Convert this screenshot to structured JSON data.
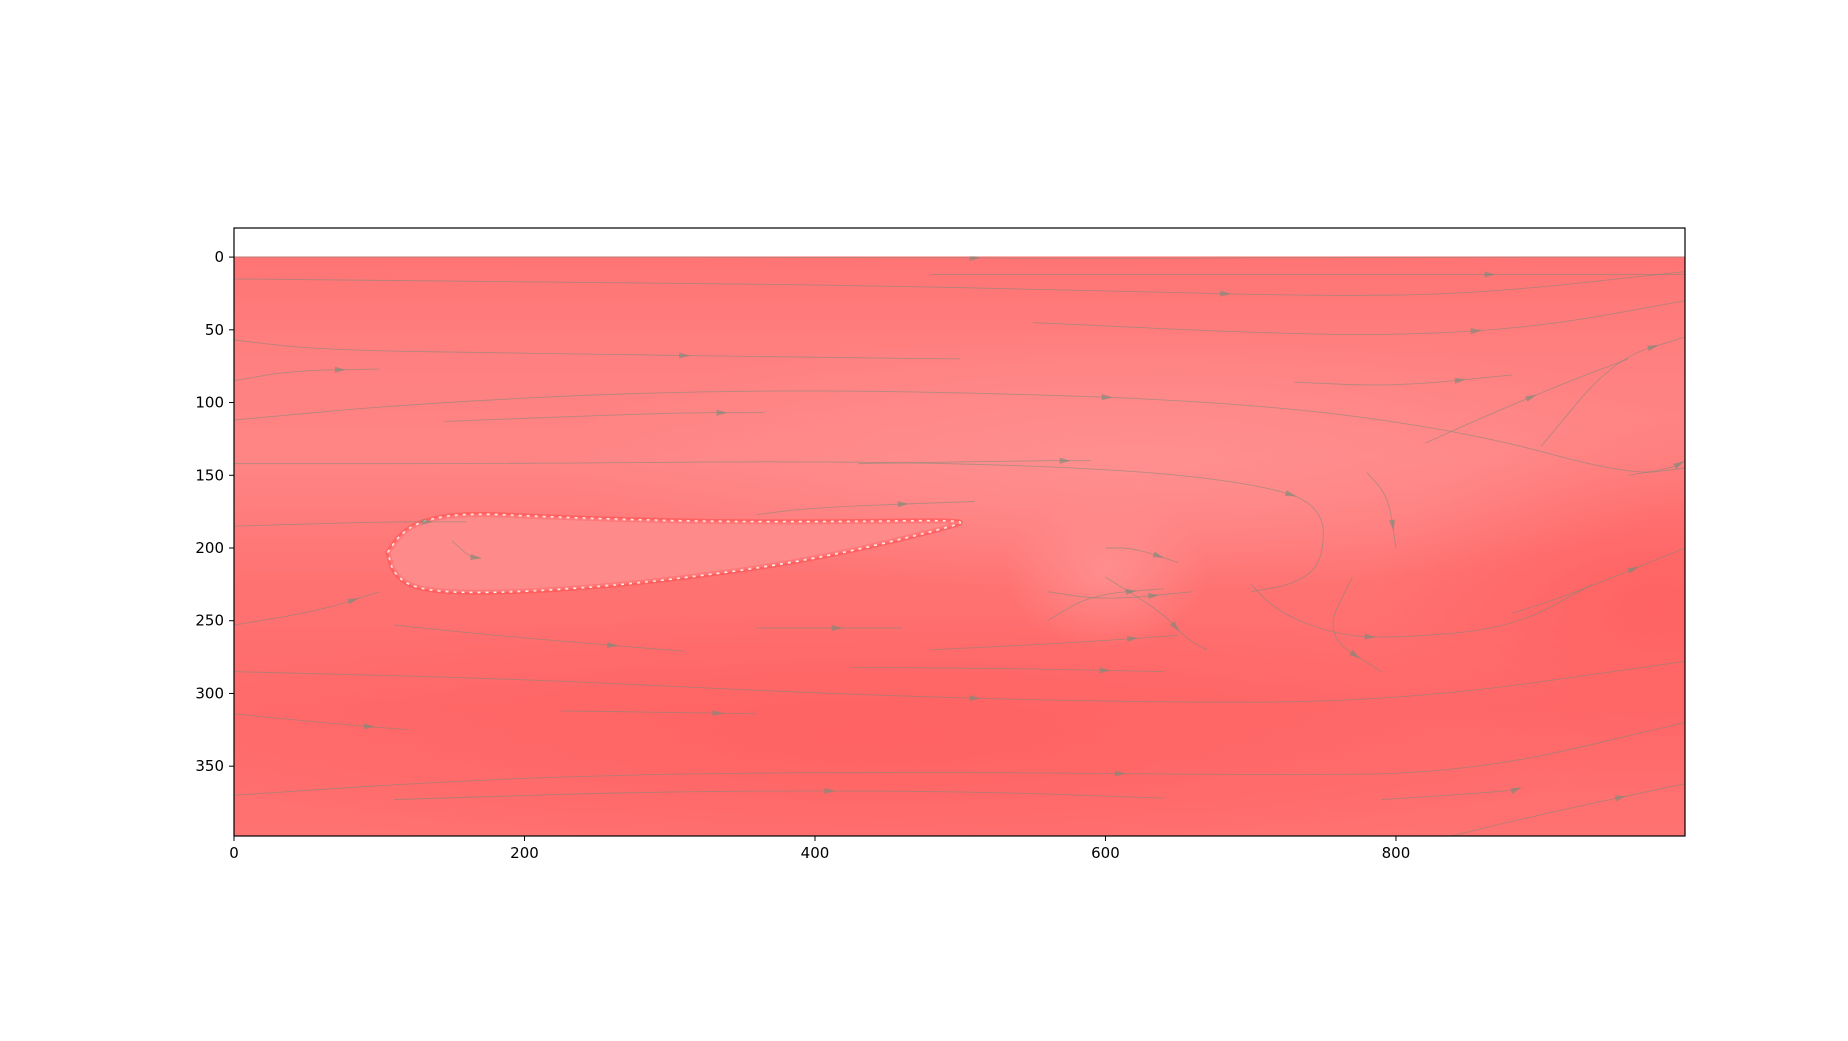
{
  "chart_data": {
    "type": "heatmap",
    "title": "",
    "xlabel": "",
    "ylabel": "",
    "x_range": [
      0,
      999
    ],
    "y_range": [
      398,
      -20
    ],
    "y_axis_inverted": true,
    "x_ticks": [
      0,
      200,
      400,
      600,
      800
    ],
    "y_ticks": [
      0,
      50,
      100,
      150,
      200,
      250,
      300,
      350
    ],
    "grid": false,
    "legend": "none",
    "colormap": {
      "low": "#ff6666",
      "high": "#ff8a8a",
      "edge": "#fff2f2"
    },
    "streamline_color": "#7a8a7a",
    "obstacle": {
      "shape": "airfoil",
      "leading_edge": [
        106,
        203
      ],
      "upper_surface": [
        [
          106,
          203
        ],
        [
          115,
          190
        ],
        [
          130,
          181
        ],
        [
          160,
          176
        ],
        [
          220,
          179
        ],
        [
          320,
          182
        ],
        [
          420,
          182
        ],
        [
          500,
          181
        ]
      ],
      "lower_surface": [
        [
          106,
          203
        ],
        [
          110,
          218
        ],
        [
          125,
          228
        ],
        [
          160,
          231
        ],
        [
          220,
          229
        ],
        [
          300,
          222
        ],
        [
          400,
          208
        ],
        [
          500,
          184
        ]
      ]
    },
    "warm_regions": [
      {
        "center": [
          980,
          240
        ],
        "radius": [
          200,
          130
        ],
        "level": 0.0
      },
      {
        "center": [
          450,
          330
        ],
        "radius": [
          500,
          90
        ],
        "level": 0.1
      }
    ],
    "cool_regions": [
      {
        "center": [
          620,
          140
        ],
        "radius": [
          400,
          90
        ],
        "level": 1.0
      },
      {
        "center": [
          600,
          215
        ],
        "radius": [
          70,
          55
        ],
        "level": 0.9
      }
    ],
    "streamlines": [
      [
        [
          0,
          0
        ],
        [
          200,
          0
        ],
        [
          400,
          0
        ],
        [
          600,
          1
        ],
        [
          800,
          0
        ],
        [
          999,
          0
        ]
      ],
      [
        [
          0,
          15
        ],
        [
          200,
          17
        ],
        [
          400,
          19
        ],
        [
          600,
          23
        ],
        [
          750,
          27
        ],
        [
          860,
          25
        ],
        [
          999,
          10
        ]
      ],
      [
        [
          0,
          57
        ],
        [
          60,
          64
        ],
        [
          200,
          66
        ],
        [
          400,
          69
        ],
        [
          500,
          70
        ]
      ],
      [
        [
          550,
          45
        ],
        [
          700,
          52
        ],
        [
          800,
          54
        ],
        [
          900,
          48
        ],
        [
          999,
          30
        ]
      ],
      [
        [
          0,
          85
        ],
        [
          40,
          78
        ],
        [
          100,
          77
        ]
      ],
      [
        [
          0,
          112
        ],
        [
          120,
          101
        ],
        [
          300,
          92
        ],
        [
          480,
          92
        ],
        [
          700,
          100
        ],
        [
          850,
          120
        ],
        [
          960,
          150
        ],
        [
          999,
          145
        ]
      ],
      [
        [
          145,
          113
        ],
        [
          300,
          107
        ],
        [
          365,
          107
        ]
      ],
      [
        [
          730,
          86
        ],
        [
          800,
          89
        ],
        [
          880,
          81
        ]
      ],
      [
        [
          0,
          142
        ],
        [
          200,
          142
        ],
        [
          420,
          140
        ],
        [
          600,
          145
        ],
        [
          700,
          155
        ],
        [
          750,
          170
        ],
        [
          750,
          210
        ],
        [
          730,
          225
        ],
        [
          700,
          230
        ]
      ],
      [
        [
          430,
          142
        ],
        [
          550,
          140
        ],
        [
          590,
          140
        ]
      ],
      [
        [
          480,
          12
        ],
        [
          700,
          12
        ],
        [
          999,
          12
        ]
      ],
      [
        [
          0,
          185
        ],
        [
          100,
          182
        ],
        [
          160,
          182
        ]
      ],
      [
        [
          900,
          130
        ],
        [
          950,
          70
        ],
        [
          999,
          55
        ]
      ],
      [
        [
          820,
          128
        ],
        [
          860,
          110
        ],
        [
          920,
          85
        ],
        [
          960,
          70
        ]
      ],
      [
        [
          0,
          253
        ],
        [
          60,
          243
        ],
        [
          100,
          230
        ]
      ],
      [
        [
          110,
          253
        ],
        [
          200,
          262
        ],
        [
          310,
          271
        ]
      ],
      [
        [
          360,
          255
        ],
        [
          460,
          255
        ]
      ],
      [
        [
          600,
          220
        ],
        [
          640,
          245
        ],
        [
          655,
          262
        ],
        [
          670,
          270
        ]
      ],
      [
        [
          700,
          225
        ],
        [
          720,
          245
        ],
        [
          760,
          260
        ],
        [
          800,
          262
        ],
        [
          880,
          255
        ],
        [
          935,
          225
        ]
      ],
      [
        [
          0,
          285
        ],
        [
          200,
          290
        ],
        [
          400,
          300
        ],
        [
          600,
          306
        ],
        [
          800,
          306
        ],
        [
          999,
          278
        ]
      ],
      [
        [
          425,
          282
        ],
        [
          550,
          283
        ],
        [
          640,
          285
        ]
      ],
      [
        [
          0,
          314
        ],
        [
          60,
          320
        ],
        [
          120,
          325
        ]
      ],
      [
        [
          225,
          312
        ],
        [
          300,
          313
        ],
        [
          360,
          314
        ]
      ],
      [
        [
          0,
          370
        ],
        [
          150,
          360
        ],
        [
          300,
          355
        ],
        [
          500,
          354
        ],
        [
          700,
          356
        ],
        [
          850,
          355
        ],
        [
          999,
          320
        ]
      ],
      [
        [
          110,
          373
        ],
        [
          300,
          367
        ],
        [
          500,
          367
        ],
        [
          640,
          372
        ]
      ],
      [
        [
          790,
          373
        ],
        [
          880,
          367
        ],
        [
          885,
          365
        ]
      ],
      [
        [
          830,
          400
        ],
        [
          900,
          383
        ],
        [
          999,
          362
        ]
      ],
      [
        [
          200,
          400
        ],
        [
          400,
          399
        ],
        [
          600,
          400
        ]
      ],
      [
        [
          770,
          220
        ],
        [
          750,
          260
        ],
        [
          790,
          285
        ]
      ],
      [
        [
          560,
          230
        ],
        [
          600,
          236
        ],
        [
          660,
          230
        ]
      ],
      [
        [
          880,
          245
        ],
        [
          920,
          232
        ],
        [
          999,
          200
        ]
      ],
      [
        [
          150,
          195
        ],
        [
          162,
          206
        ],
        [
          170,
          207
        ]
      ],
      [
        [
          560,
          250
        ],
        [
          590,
          232
        ],
        [
          640,
          228
        ]
      ],
      [
        [
          480,
          270
        ],
        [
          580,
          265
        ],
        [
          650,
          260
        ]
      ],
      [
        [
          960,
          150
        ],
        [
          990,
          145
        ],
        [
          999,
          140
        ]
      ],
      [
        [
          780,
          148
        ],
        [
          795,
          165
        ],
        [
          800,
          200
        ]
      ],
      [
        [
          360,
          177
        ],
        [
          400,
          172
        ],
        [
          510,
          168
        ]
      ],
      [
        [
          600,
          200
        ],
        [
          620,
          200
        ],
        [
          650,
          210
        ]
      ]
    ]
  }
}
